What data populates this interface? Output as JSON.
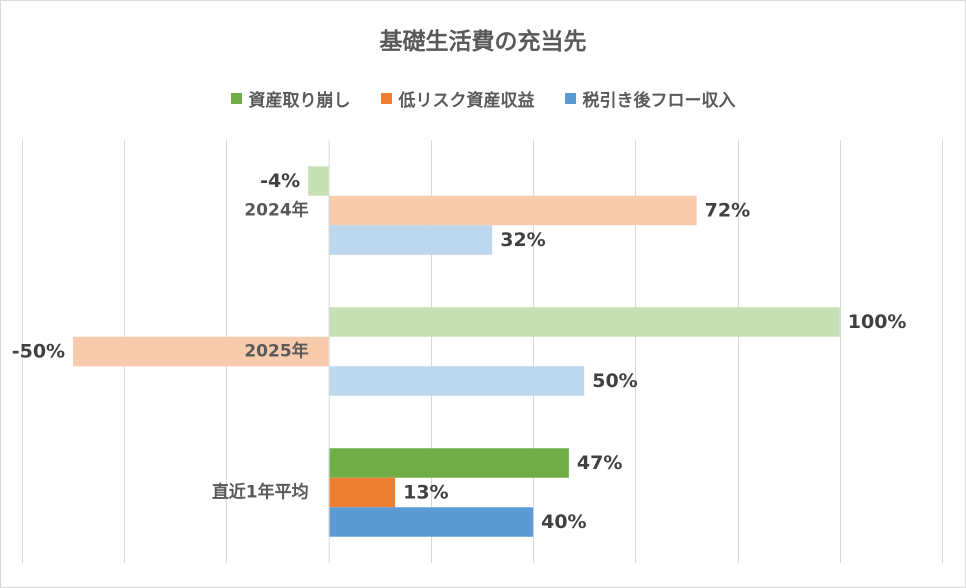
{
  "chart_data": {
    "type": "bar",
    "orientation": "horizontal",
    "title": "基礎生活費の充当先",
    "legend_position": "top",
    "grid": true,
    "xlim": [
      -60,
      120
    ],
    "categories": [
      "2024年",
      "2025年",
      "直近1年平均"
    ],
    "series": [
      {
        "name": "資産取り崩し",
        "legend_color": "#70ad47",
        "colors": [
          "#c5e0b4",
          "#c5e0b4",
          "#70ad47"
        ],
        "values": [
          -4,
          100,
          47
        ],
        "labels": [
          "-4%",
          "100%",
          "47%"
        ]
      },
      {
        "name": "低リスク資産収益",
        "legend_color": "#ed7d31",
        "colors": [
          "#f8cbad",
          "#f8cbad",
          "#ed7d31"
        ],
        "values": [
          72,
          -50,
          13
        ],
        "labels": [
          "72%",
          "-50%",
          "13%"
        ]
      },
      {
        "name": "税引き後フロー収入",
        "legend_color": "#5b9bd5",
        "colors": [
          "#bdd7ee",
          "#bdd7ee",
          "#5b9bd5"
        ],
        "values": [
          32,
          50,
          40
        ],
        "labels": [
          "32%",
          "50%",
          "40%"
        ]
      }
    ]
  }
}
